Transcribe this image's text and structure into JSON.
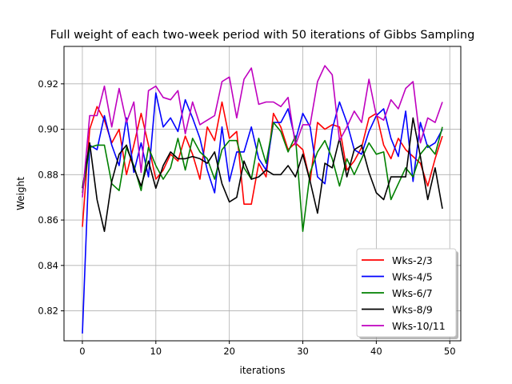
{
  "chart_data": {
    "type": "line",
    "title": "Full weight of each two-week period with 50 iterations of Gibbs Sampling",
    "xlabel": "iterations",
    "ylabel": "Weight",
    "xlim": [
      -2.5,
      51.5
    ],
    "ylim": [
      0.8068,
      0.9365
    ],
    "xticks": [
      0,
      10,
      20,
      30,
      40,
      50
    ],
    "yticks": [
      0.82,
      0.84,
      0.86,
      0.88,
      0.9,
      0.92
    ],
    "ytick_labels": [
      "0.82",
      "0.84",
      "0.86",
      "0.88",
      "0.90",
      "0.92"
    ],
    "grid": true,
    "legend_position": "lower-right",
    "x": [
      0,
      1,
      2,
      3,
      4,
      5,
      6,
      7,
      8,
      9,
      10,
      11,
      12,
      13,
      14,
      15,
      16,
      17,
      18,
      19,
      20,
      21,
      22,
      23,
      24,
      25,
      26,
      27,
      28,
      29,
      30,
      31,
      32,
      33,
      34,
      35,
      36,
      37,
      38,
      39,
      40,
      41,
      42,
      43,
      44,
      45,
      46,
      47,
      48,
      49
    ],
    "series": [
      {
        "name": "Wks-2/3",
        "color": "#ff0000",
        "values": [
          0.857,
          0.9,
          0.91,
          0.904,
          0.894,
          0.9,
          0.88,
          0.893,
          0.907,
          0.893,
          0.878,
          0.882,
          0.889,
          0.886,
          0.897,
          0.889,
          0.878,
          0.901,
          0.895,
          0.912,
          0.896,
          0.899,
          0.867,
          0.867,
          0.885,
          0.879,
          0.907,
          0.901,
          0.891,
          0.894,
          0.891,
          0.877,
          0.903,
          0.9,
          0.902,
          0.901,
          0.882,
          0.886,
          0.892,
          0.905,
          0.907,
          0.893,
          0.887,
          0.896,
          0.891,
          0.888,
          0.885,
          0.875,
          0.887,
          0.897
        ]
      },
      {
        "name": "Wks-4/5",
        "color": "#0000ff",
        "values": [
          0.81,
          0.893,
          0.891,
          0.906,
          0.893,
          0.884,
          0.905,
          0.881,
          0.894,
          0.879,
          0.916,
          0.901,
          0.905,
          0.899,
          0.913,
          0.905,
          0.896,
          0.882,
          0.872,
          0.901,
          0.877,
          0.89,
          0.89,
          0.901,
          0.887,
          0.882,
          0.903,
          0.903,
          0.909,
          0.895,
          0.907,
          0.901,
          0.879,
          0.876,
          0.9,
          0.912,
          0.903,
          0.891,
          0.889,
          0.899,
          0.906,
          0.909,
          0.896,
          0.888,
          0.908,
          0.877,
          0.903,
          0.892,
          0.894,
          0.9
        ]
      },
      {
        "name": "Wks-6/7",
        "color": "#008000",
        "values": [
          0.872,
          0.892,
          0.893,
          0.893,
          0.876,
          0.873,
          0.892,
          0.884,
          0.873,
          0.892,
          0.884,
          0.878,
          0.883,
          0.896,
          0.882,
          0.896,
          0.89,
          0.887,
          0.878,
          0.891,
          0.895,
          0.895,
          0.883,
          0.878,
          0.896,
          0.885,
          0.903,
          0.899,
          0.89,
          0.897,
          0.855,
          0.881,
          0.89,
          0.895,
          0.887,
          0.875,
          0.887,
          0.88,
          0.887,
          0.894,
          0.889,
          0.89,
          0.869,
          0.876,
          0.883,
          0.879,
          0.889,
          0.893,
          0.889,
          0.901
        ]
      },
      {
        "name": "Wks-8/9",
        "color": "#000000",
        "values": [
          0.874,
          0.894,
          0.869,
          0.855,
          0.877,
          0.889,
          0.893,
          0.883,
          0.875,
          0.886,
          0.874,
          0.884,
          0.89,
          0.887,
          0.887,
          0.888,
          0.887,
          0.885,
          0.89,
          0.876,
          0.868,
          0.87,
          0.886,
          0.878,
          0.879,
          0.882,
          0.88,
          0.88,
          0.884,
          0.879,
          0.889,
          0.877,
          0.863,
          0.885,
          0.883,
          0.896,
          0.879,
          0.891,
          0.893,
          0.881,
          0.872,
          0.869,
          0.879,
          0.879,
          0.879,
          0.905,
          0.888,
          0.869,
          0.883,
          0.865
        ]
      },
      {
        "name": "Wks-10/11",
        "color": "#bf00bf",
        "values": [
          0.87,
          0.906,
          0.906,
          0.919,
          0.901,
          0.918,
          0.903,
          0.912,
          0.881,
          0.917,
          0.919,
          0.914,
          0.913,
          0.917,
          0.898,
          0.912,
          0.902,
          0.904,
          0.906,
          0.921,
          0.923,
          0.905,
          0.922,
          0.927,
          0.911,
          0.912,
          0.912,
          0.91,
          0.914,
          0.893,
          0.902,
          0.902,
          0.921,
          0.928,
          0.924,
          0.895,
          0.901,
          0.908,
          0.903,
          0.922,
          0.906,
          0.904,
          0.913,
          0.909,
          0.918,
          0.921,
          0.894,
          0.905,
          0.903,
          0.912
        ]
      }
    ]
  }
}
